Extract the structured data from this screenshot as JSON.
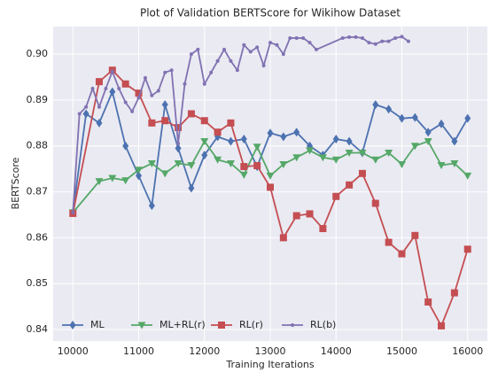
{
  "chart_data": {
    "type": "line",
    "title": "Plot of Validation BERTScore for Wikihow Dataset",
    "x_label": "Training Iterations",
    "y_label": "BERTScore",
    "xlim": [
      9700,
      16300
    ],
    "xticks": [
      10000,
      11000,
      12000,
      13000,
      14000,
      15000,
      16000
    ],
    "ylim": [
      0.8375,
      0.906
    ],
    "yticks": [
      0.84,
      0.85,
      0.86,
      0.87,
      0.88,
      0.89,
      {
        "value": 0.9,
        "label": "0.90"
      }
    ],
    "grid": true,
    "legend": "lower left",
    "series": [
      {
        "name": "ML",
        "color": "#4c72b0",
        "marker": "diamond",
        "x": [
          10000,
          10200,
          10400,
          10600,
          10800,
          11000,
          11200,
          11400,
          11600,
          11800,
          12000,
          12200,
          12400,
          12600,
          12800,
          13000,
          13200,
          13400,
          13600,
          13800,
          14000,
          14200,
          14400,
          14600,
          14800,
          15000,
          15200,
          15400,
          15600,
          15800,
          16000
        ],
        "values": [
          0.8655,
          0.887,
          0.885,
          0.8918,
          0.88,
          0.8735,
          0.867,
          0.889,
          0.8795,
          0.8708,
          0.878,
          0.882,
          0.881,
          0.8815,
          0.8755,
          0.8828,
          0.882,
          0.883,
          0.88,
          0.878,
          0.8815,
          0.881,
          0.8785,
          0.889,
          0.888,
          0.886,
          0.8862,
          0.883,
          0.8848,
          0.881,
          0.886
        ]
      },
      {
        "name": "ML+RL(r)",
        "color": "#55a868",
        "marker": "triangle",
        "x": [
          10000,
          10400,
          10600,
          10800,
          11000,
          11200,
          11400,
          11600,
          11800,
          12000,
          12200,
          12400,
          12600,
          12800,
          13000,
          13200,
          13400,
          13600,
          13800,
          14000,
          14200,
          14400,
          14600,
          14800,
          15000,
          15200,
          15400,
          15600,
          15800,
          16000
        ],
        "values": [
          0.8655,
          0.8723,
          0.873,
          0.8725,
          0.8748,
          0.8762,
          0.874,
          0.8762,
          0.8758,
          0.881,
          0.877,
          0.8762,
          0.8737,
          0.8798,
          0.8735,
          0.876,
          0.8775,
          0.879,
          0.8775,
          0.877,
          0.8785,
          0.8785,
          0.877,
          0.8785,
          0.876,
          0.88,
          0.881,
          0.8758,
          0.8762,
          0.8735
        ]
      },
      {
        "name": "RL(r)",
        "color": "#c44e52",
        "marker": "square",
        "x": [
          10000,
          10400,
          10600,
          10800,
          11000,
          11200,
          11400,
          11600,
          11800,
          12000,
          12200,
          12400,
          12600,
          12800,
          13000,
          13200,
          13400,
          13600,
          13800,
          14000,
          14200,
          14400,
          14600,
          14800,
          15000,
          15200,
          15400,
          15600,
          15800,
          16000
        ],
        "values": [
          0.8653,
          0.894,
          0.8965,
          0.8935,
          0.8915,
          0.885,
          0.8855,
          0.884,
          0.887,
          0.8855,
          0.883,
          0.885,
          0.8755,
          0.8757,
          0.871,
          0.86,
          0.8648,
          0.8652,
          0.862,
          0.869,
          0.8715,
          0.874,
          0.8675,
          0.859,
          0.8565,
          0.8605,
          0.846,
          0.8408,
          0.848,
          0.8575
        ]
      },
      {
        "name": "RL(b)",
        "color": "#8172b2",
        "marker": "point",
        "x": [
          10000,
          10100,
          10200,
          10300,
          10400,
          10500,
          10600,
          10700,
          10800,
          10900,
          11000,
          11100,
          11200,
          11300,
          11400,
          11500,
          11600,
          11700,
          11800,
          11900,
          12000,
          12100,
          12200,
          12300,
          12400,
          12500,
          12600,
          12700,
          12800,
          12900,
          13000,
          13100,
          13200,
          13300,
          13400,
          13500,
          13600,
          13700,
          14100,
          14200,
          14300,
          14400,
          14500,
          14600,
          14700,
          14800,
          14900,
          15000,
          15100
        ],
        "values": [
          0.8655,
          0.887,
          0.8885,
          0.8925,
          0.8885,
          0.8925,
          0.8962,
          0.8925,
          0.8895,
          0.8875,
          0.8905,
          0.8948,
          0.891,
          0.892,
          0.896,
          0.8965,
          0.8805,
          0.8935,
          0.9,
          0.901,
          0.8935,
          0.896,
          0.8985,
          0.901,
          0.8985,
          0.8965,
          0.902,
          0.9005,
          0.9015,
          0.8975,
          0.9025,
          0.902,
          0.9,
          0.9035,
          0.9035,
          0.9035,
          0.9025,
          0.901,
          0.9035,
          0.9037,
          0.9037,
          0.9035,
          0.9025,
          0.9022,
          0.9028,
          0.9028,
          0.9035,
          0.9038,
          0.9028
        ]
      }
    ]
  }
}
